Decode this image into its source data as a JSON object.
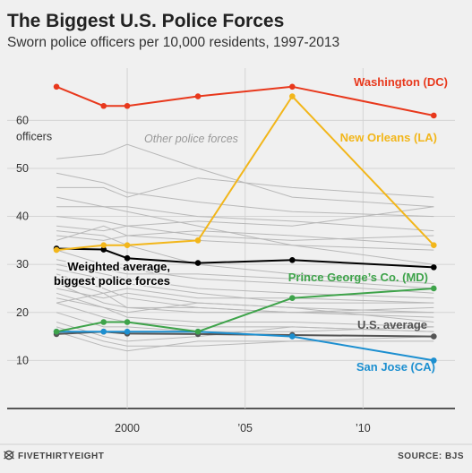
{
  "chart_data": {
    "type": "line",
    "title": "The Biggest U.S. Police Forces",
    "subtitle": "Sworn police officers per 10,000 residents, 1997-2013",
    "y_unit_label": "officers",
    "xlim": [
      1996.2,
      2013.9
    ],
    "ylim": [
      0,
      72
    ],
    "x_ticks": [
      {
        "value": 2000,
        "label": "2000"
      },
      {
        "value": 2005,
        "label": "’05"
      },
      {
        "value": 2010,
        "label": "’10"
      }
    ],
    "y_ticks": [
      {
        "value": 10,
        "label": "10"
      },
      {
        "value": 20,
        "label": "20"
      },
      {
        "value": 30,
        "label": "30"
      },
      {
        "value": 40,
        "label": "40"
      },
      {
        "value": 50,
        "label": "50"
      },
      {
        "value": 60,
        "label": "60"
      }
    ],
    "grid": true,
    "background_label": "Other police forces",
    "series": [
      {
        "name": "Washington (DC)",
        "color": "#e8381c",
        "x": [
          1997,
          1999,
          2000,
          2003,
          2007,
          2013
        ],
        "y": [
          67,
          63,
          63,
          65,
          67,
          61
        ]
      },
      {
        "name": "New Orleans (LA)",
        "color": "#f2b61a",
        "x": [
          1997,
          1999,
          2000,
          2003,
          2007,
          2013
        ],
        "y": [
          33,
          34,
          34,
          35,
          65,
          34
        ]
      },
      {
        "name": "Weighted average, biggest police forces",
        "color": "#000000",
        "x": [
          1997,
          1999,
          2000,
          2003,
          2007,
          2013
        ],
        "y": [
          33.3,
          33.1,
          31.3,
          30.3,
          30.9,
          29.4
        ]
      },
      {
        "name": "Prince George’s Co. (MD)",
        "color": "#3ea34a",
        "x": [
          1997,
          1999,
          2000,
          2003,
          2007,
          2013
        ],
        "y": [
          16,
          18,
          18,
          16,
          23,
          25
        ]
      },
      {
        "name": "U.S. average",
        "color": "#555555",
        "x": [
          1997,
          1999,
          2000,
          2003,
          2007,
          2013
        ],
        "y": [
          15.5,
          16,
          15.6,
          15.5,
          15.3,
          15
        ]
      },
      {
        "name": "San Jose (CA)",
        "color": "#1c8fd0",
        "x": [
          1997,
          1999,
          2000,
          2003,
          2007,
          2013
        ],
        "y": [
          16,
          16,
          16,
          16,
          15,
          10
        ]
      }
    ],
    "other_series_x": [
      1997,
      1999,
      2000,
      2003,
      2007,
      2013
    ],
    "other_series": [
      [
        52,
        53,
        55,
        50,
        44,
        42
      ],
      [
        49,
        47,
        45,
        43,
        41,
        40
      ],
      [
        46,
        46,
        44,
        48,
        46,
        44
      ],
      [
        44,
        42,
        41,
        38,
        34,
        30
      ],
      [
        42,
        42,
        42,
        40,
        39,
        37
      ],
      [
        40,
        39,
        38,
        36,
        35,
        36
      ],
      [
        38,
        37,
        38,
        39,
        38,
        42
      ],
      [
        37,
        36,
        34,
        30,
        28,
        26
      ],
      [
        36,
        35,
        36,
        35,
        34,
        33
      ],
      [
        33,
        30,
        29,
        27,
        26,
        24
      ],
      [
        31,
        29,
        28,
        28,
        27,
        25
      ],
      [
        30,
        28,
        27,
        25,
        24,
        23
      ],
      [
        29,
        27,
        26,
        24,
        22,
        22
      ],
      [
        28,
        25,
        23,
        21,
        20,
        20
      ],
      [
        27,
        24,
        21,
        20,
        20,
        19
      ],
      [
        26,
        22,
        21,
        21,
        20,
        21
      ],
      [
        25,
        23,
        24,
        22,
        21,
        20
      ],
      [
        24,
        21,
        20,
        22,
        21,
        18
      ],
      [
        23,
        21,
        19,
        18,
        18,
        17
      ],
      [
        22,
        19,
        18,
        17,
        17,
        16
      ],
      [
        20,
        17,
        17,
        16,
        16,
        17
      ],
      [
        18,
        15,
        14,
        15,
        17,
        16
      ],
      [
        17,
        14,
        13,
        13,
        14,
        15
      ],
      [
        16,
        13,
        12,
        14,
        14,
        14
      ],
      [
        22,
        24,
        25,
        23,
        23,
        22
      ],
      [
        35,
        38,
        36,
        37,
        36,
        34
      ]
    ]
  },
  "footer": {
    "brand": "FIVETHIRTYEIGHT",
    "source": "SOURCE: BJS"
  },
  "colors": {
    "background": "#f0f0f0",
    "grid": "#d4d4d4",
    "other_lines": "#b8b8b8"
  }
}
